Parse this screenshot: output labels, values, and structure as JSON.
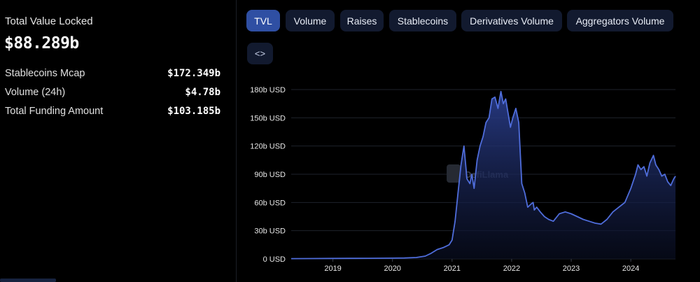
{
  "summary": {
    "tvl_label": "Total Value Locked",
    "tvl_value": "$88.289b",
    "stats": [
      {
        "label": "Stablecoins Mcap",
        "value": "$172.349b"
      },
      {
        "label": "Volume (24h)",
        "value": "$4.78b"
      },
      {
        "label": "Total Funding Amount",
        "value": "$103.185b"
      }
    ]
  },
  "tabs": [
    {
      "label": "TVL",
      "active": true
    },
    {
      "label": "Volume",
      "active": false
    },
    {
      "label": "Raises",
      "active": false
    },
    {
      "label": "Stablecoins",
      "active": false
    },
    {
      "label": "Derivatives Volume",
      "active": false
    },
    {
      "label": "Aggregators Volume",
      "active": false
    }
  ],
  "embed_button": {
    "icon": "code-icon",
    "glyph": "<>"
  },
  "watermark": "DefiLlama",
  "colors": {
    "line": "#4f6ddb",
    "fill_top": "#2b3f8f",
    "fill_bottom": "#0a0f24",
    "active_tab": "#2f4fa3",
    "tab": "#121a2f"
  },
  "chart_data": {
    "type": "area",
    "title": "",
    "xlabel": "",
    "ylabel": "",
    "y_unit": "USD",
    "ylim": [
      0,
      180
    ],
    "y_ticks": [
      0,
      30,
      60,
      90,
      120,
      150,
      180
    ],
    "y_tick_labels": [
      "0 USD",
      "30b USD",
      "60b USD",
      "90b USD",
      "120b USD",
      "150b USD",
      "180b USD"
    ],
    "x_tick_labels": [
      "2019",
      "2020",
      "2021",
      "2022",
      "2023",
      "2024"
    ],
    "x_ticks": [
      2019.0,
      2020.0,
      2021.0,
      2022.0,
      2023.0,
      2024.0
    ],
    "xlim": [
      2018.3,
      2024.75
    ],
    "grid": true,
    "legend": "none",
    "series": [
      {
        "x": [
          2018.3,
          2018.6,
          2019.0,
          2019.3,
          2019.6,
          2020.0,
          2020.2,
          2020.4,
          2020.55,
          2020.65,
          2020.75,
          2020.85,
          2020.95,
          2021.0,
          2021.05,
          2021.1,
          2021.15,
          2021.2,
          2021.25,
          2021.3,
          2021.33,
          2021.37,
          2021.42,
          2021.47,
          2021.52,
          2021.57,
          2021.62,
          2021.67,
          2021.72,
          2021.77,
          2021.82,
          2021.86,
          2021.9,
          2021.94,
          2021.98,
          2022.02,
          2022.07,
          2022.12,
          2022.17,
          2022.22,
          2022.27,
          2022.32,
          2022.36,
          2022.38,
          2022.42,
          2022.48,
          2022.55,
          2022.62,
          2022.7,
          2022.8,
          2022.9,
          2023.0,
          2023.1,
          2023.2,
          2023.3,
          2023.4,
          2023.5,
          2023.6,
          2023.7,
          2023.8,
          2023.9,
          2024.0,
          2024.08,
          2024.12,
          2024.17,
          2024.22,
          2024.27,
          2024.32,
          2024.38,
          2024.42,
          2024.47,
          2024.52,
          2024.57,
          2024.62,
          2024.67,
          2024.72,
          2024.75
        ],
        "y": [
          0.3,
          0.4,
          0.5,
          0.6,
          0.7,
          0.8,
          1.0,
          1.5,
          3,
          6,
          10,
          12,
          15,
          20,
          40,
          70,
          100,
          120,
          85,
          80,
          90,
          75,
          105,
          120,
          130,
          145,
          150,
          170,
          172,
          160,
          178,
          165,
          170,
          155,
          140,
          150,
          160,
          145,
          80,
          70,
          55,
          58,
          60,
          52,
          55,
          50,
          45,
          42,
          40,
          48,
          50,
          48,
          45,
          42,
          40,
          38,
          37,
          42,
          50,
          55,
          60,
          75,
          90,
          100,
          95,
          98,
          88,
          102,
          110,
          100,
          95,
          88,
          90,
          82,
          78,
          85,
          88
        ]
      }
    ]
  }
}
